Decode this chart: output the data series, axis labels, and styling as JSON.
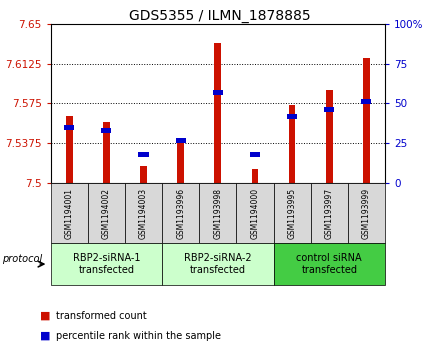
{
  "title": "GDS5355 / ILMN_1878885",
  "samples": [
    "GSM1194001",
    "GSM1194002",
    "GSM1194003",
    "GSM1193996",
    "GSM1193998",
    "GSM1194000",
    "GSM1193995",
    "GSM1193997",
    "GSM1193999"
  ],
  "transformed_counts": [
    7.563,
    7.558,
    7.516,
    7.543,
    7.632,
    7.513,
    7.574,
    7.588,
    7.618
  ],
  "percentile_ranks": [
    35,
    33,
    18,
    27,
    57,
    18,
    42,
    46,
    51
  ],
  "ylim_left": [
    7.5,
    7.65
  ],
  "ylim_right": [
    0,
    100
  ],
  "yticks_left": [
    7.5,
    7.5375,
    7.575,
    7.6125,
    7.65
  ],
  "yticks_right": [
    0,
    25,
    50,
    75,
    100
  ],
  "bar_color_red": "#cc1100",
  "bar_color_blue": "#0000cc",
  "protocol_groups": [
    {
      "label": "RBP2-siRNA-1\ntransfected",
      "start": 0,
      "end": 3,
      "color": "#ccffcc"
    },
    {
      "label": "RBP2-siRNA-2\ntransfected",
      "start": 3,
      "end": 6,
      "color": "#ccffcc"
    },
    {
      "label": "control siRNA\ntransfected",
      "start": 6,
      "end": 9,
      "color": "#44cc44"
    }
  ],
  "protocol_label": "protocol",
  "legend_items": [
    {
      "label": "transformed count",
      "color": "#cc1100"
    },
    {
      "label": "percentile rank within the sample",
      "color": "#0000cc"
    }
  ],
  "sample_box_color": "#d8d8d8",
  "bar_width": 0.18
}
